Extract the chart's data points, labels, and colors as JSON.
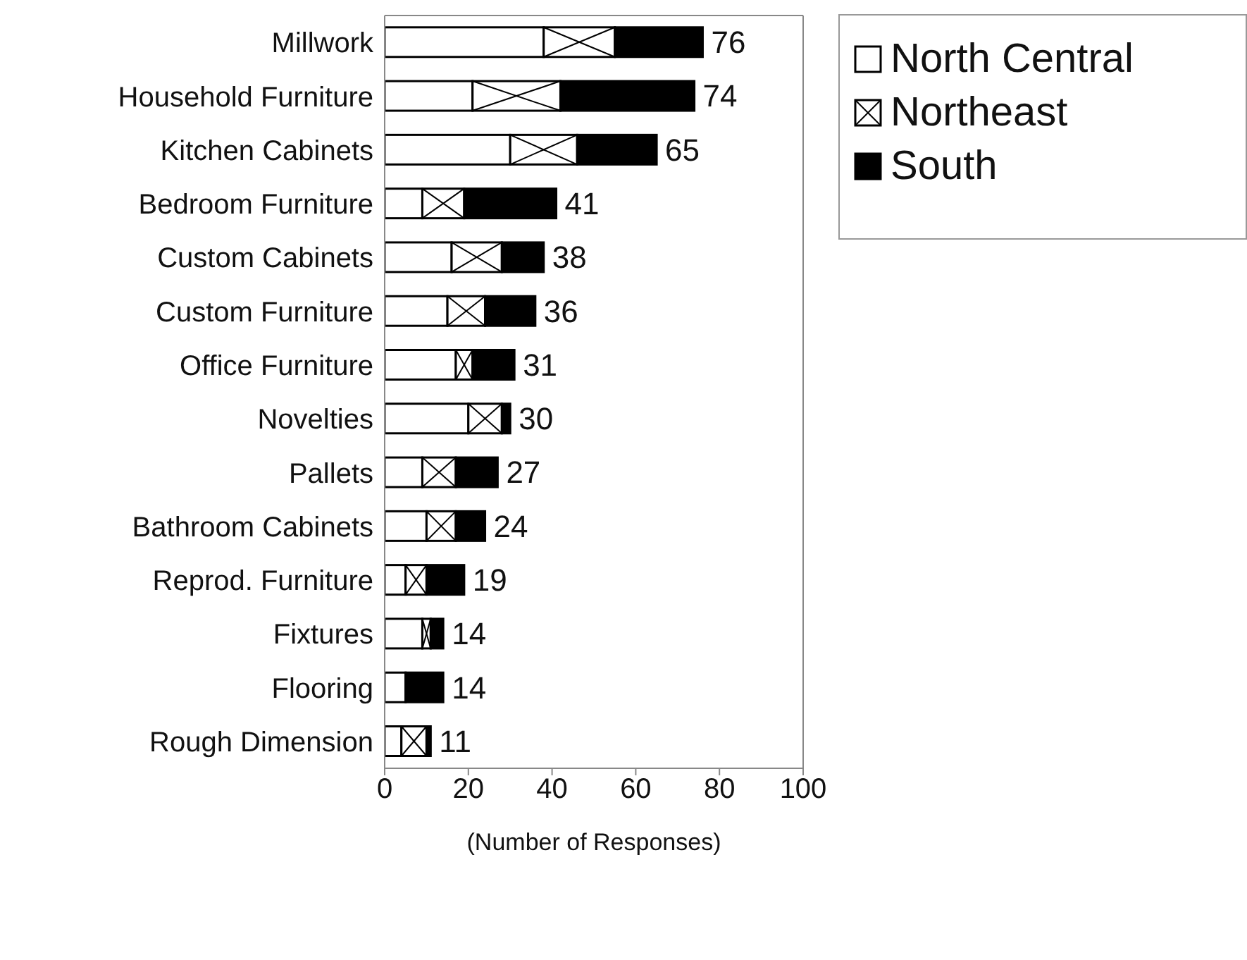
{
  "chart_data": {
    "type": "bar",
    "orientation": "horizontal",
    "stacked": true,
    "categories": [
      "Millwork",
      "Household Furniture",
      "Kitchen Cabinets",
      "Bedroom Furniture",
      "Custom Cabinets",
      "Custom Furniture",
      "Office Furniture",
      "Novelties",
      "Pallets",
      "Bathroom Cabinets",
      "Reprod. Furniture",
      "Fixtures",
      "Flooring",
      "Rough Dimension"
    ],
    "series": [
      {
        "name": "North Central",
        "color": "#ffffff",
        "values": [
          38,
          21,
          30,
          9,
          16,
          15,
          17,
          20,
          9,
          10,
          5,
          9,
          5,
          4
        ]
      },
      {
        "name": "Northeast",
        "color": "#ffffff",
        "values": [
          17,
          21,
          16,
          10,
          12,
          9,
          4,
          8,
          8,
          7,
          5,
          2,
          0,
          6
        ]
      },
      {
        "name": "South",
        "color": "#000000",
        "values": [
          21,
          32,
          19,
          22,
          10,
          12,
          10,
          2,
          10,
          7,
          9,
          3,
          9,
          1
        ]
      }
    ],
    "totals": [
      "76",
      "74",
      "65",
      "41",
      "38",
      "36",
      "31",
      "30",
      "27",
      "24",
      "19",
      "14",
      "14",
      "11"
    ],
    "xlabel": "(Number of Responses)",
    "xlim": [
      0,
      100
    ],
    "xticks": [
      0,
      20,
      40,
      60,
      80,
      100
    ],
    "legend": "top right",
    "grid": false
  }
}
